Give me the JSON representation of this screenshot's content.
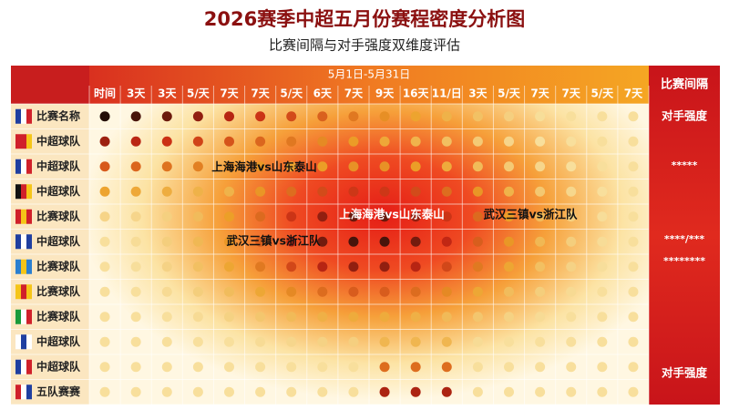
{
  "title": "2026赛季中超五月份赛程密度分析图",
  "subtitle": "比赛间隔与对手强度双维度评估",
  "header": {
    "date_range": "5月1日-5月31日",
    "columns": [
      "时间",
      "3天",
      "3天",
      "5/天",
      "7天",
      "7天",
      "5/天",
      "6天",
      "7天",
      "9天",
      "16天",
      "11/日",
      "3天",
      "5/天",
      "7天",
      "7天",
      "5/天",
      "7天"
    ],
    "right_title": "比赛间隔"
  },
  "rows": [
    "比赛名称",
    "中超球队",
    "中超球队",
    "中超球队",
    "比赛球队",
    "中超球队",
    "比赛球队",
    "比赛球队",
    "比赛球队",
    "中超球队",
    "中超球队",
    "五队赛赛"
  ],
  "right_labels": [
    "对手强度",
    "*****",
    "****/***",
    "********",
    "对手强度"
  ],
  "annotations": [
    "上海海港vs山东泰山",
    "上海海港vs山东泰山",
    "武汉三镇vs浙江队",
    "武汉三镇vs浙江队"
  ]
}
